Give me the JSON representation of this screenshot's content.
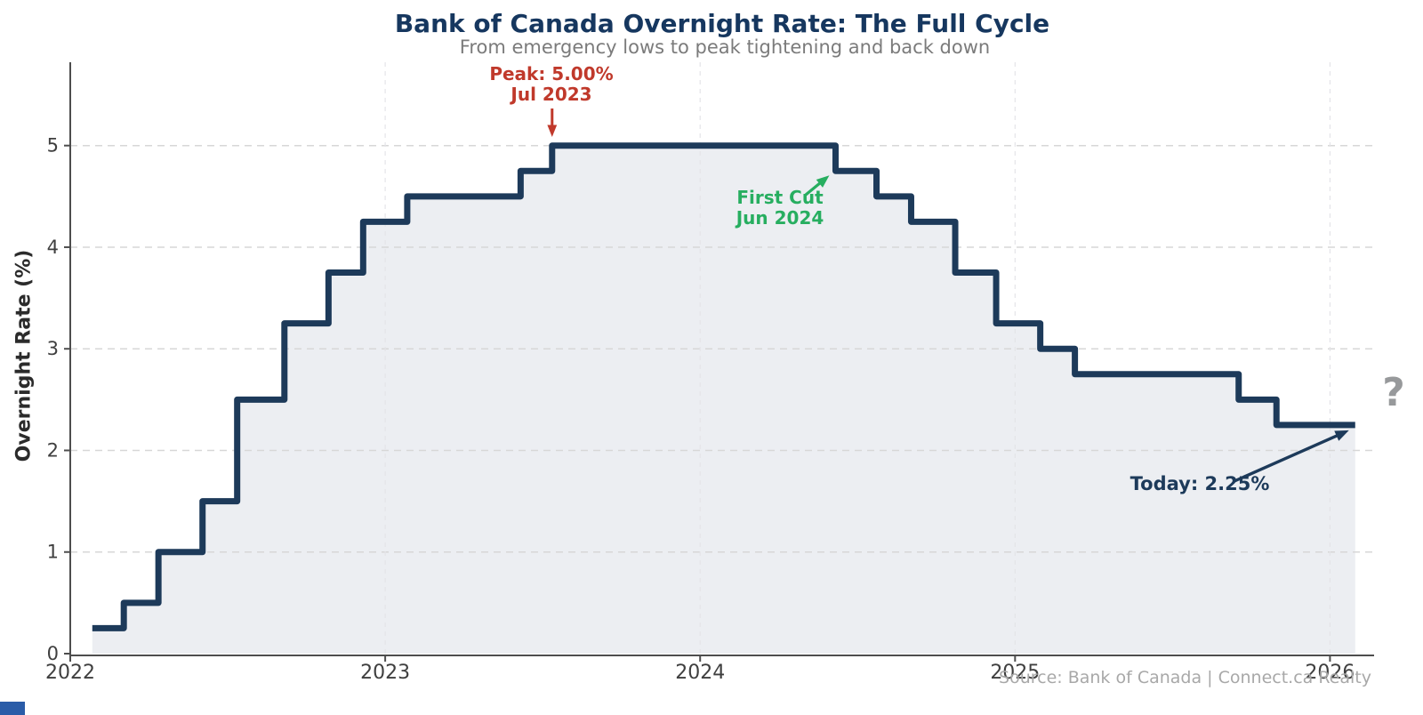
{
  "chart_data": {
    "type": "area",
    "title": "Bank of Canada Overnight Rate: The Full Cycle",
    "subtitle": "From emergency lows to peak tightening and back down",
    "xlabel": "",
    "ylabel": "Overnight Rate (%)",
    "x_ticks": [
      "2022",
      "2023",
      "2024",
      "2025",
      "2026"
    ],
    "x_tick_values": [
      2022,
      2023,
      2024,
      2025,
      2026
    ],
    "y_ticks": [
      "0",
      "1",
      "2",
      "3",
      "4",
      "5"
    ],
    "y_tick_values": [
      0,
      1,
      2,
      3,
      4,
      5
    ],
    "xlim": [
      2022,
      2026.14
    ],
    "ylim": [
      0,
      5.82
    ],
    "grid": true,
    "legend": false,
    "series_name": "Bank of Canada overnight rate (%)",
    "steps": [
      {
        "date": "Jan 2022",
        "t": 2022.07,
        "rate": 0.25
      },
      {
        "date": "Mar 2022",
        "t": 2022.17,
        "rate": 0.5
      },
      {
        "date": "Apr 2022",
        "t": 2022.28,
        "rate": 1.0
      },
      {
        "date": "Jun 2022",
        "t": 2022.42,
        "rate": 1.5
      },
      {
        "date": "Jul 2022",
        "t": 2022.53,
        "rate": 2.5
      },
      {
        "date": "Sep 2022",
        "t": 2022.68,
        "rate": 3.25
      },
      {
        "date": "Oct 2022",
        "t": 2022.82,
        "rate": 3.75
      },
      {
        "date": "Dec 2022",
        "t": 2022.93,
        "rate": 4.25
      },
      {
        "date": "Jan 2023",
        "t": 2023.07,
        "rate": 4.5
      },
      {
        "date": "Jun 2023",
        "t": 2023.43,
        "rate": 4.75
      },
      {
        "date": "Jul 2023",
        "t": 2023.53,
        "rate": 5.0
      },
      {
        "date": "Jun 2024",
        "t": 2024.43,
        "rate": 4.75
      },
      {
        "date": "Jul 2024",
        "t": 2024.56,
        "rate": 4.5
      },
      {
        "date": "Sep 2024",
        "t": 2024.67,
        "rate": 4.25
      },
      {
        "date": "Oct 2024",
        "t": 2024.81,
        "rate": 3.75
      },
      {
        "date": "Dec 2024",
        "t": 2024.94,
        "rate": 3.25
      },
      {
        "date": "Jan 2025",
        "t": 2025.08,
        "rate": 3.0
      },
      {
        "date": "Mar 2025",
        "t": 2025.19,
        "rate": 2.75
      },
      {
        "date": "Sep 2025",
        "t": 2025.71,
        "rate": 2.5
      },
      {
        "date": "Oct 2025",
        "t": 2025.83,
        "rate": 2.25
      }
    ],
    "end_t": 2026.08,
    "current_rate": 2.25,
    "annotations": {
      "peak": {
        "line1": "Peak: 5.00%",
        "line2": "Jul 2023",
        "color": "#c0392b"
      },
      "first_cut": {
        "line1": "First Cut",
        "line2": "Jun 2024",
        "color": "#27ae60"
      },
      "today": {
        "label": "Today: 2.25%",
        "color": "#1d3a5a"
      },
      "future": {
        "label": "?",
        "color": "#97999b"
      }
    }
  },
  "footer": {
    "source": "Source: Bank of Canada | Connect.ca Realty"
  },
  "colors": {
    "line": "#1d3a5a",
    "fill": "#eceef2",
    "title": "#16375f",
    "subtitle": "#7b7b7b",
    "red_accent": "#c0392b",
    "green_accent": "#27ae60",
    "grid": "#d7d7d7",
    "grid_vertical": "#e4e4e8",
    "spine": "#4d4d4d",
    "tick_label": "#3f3f3f",
    "source_text": "#a8a8a8"
  }
}
